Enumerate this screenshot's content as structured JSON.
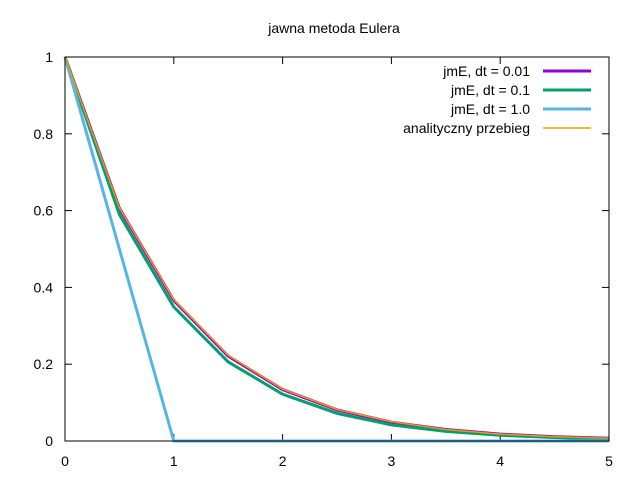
{
  "chart_data": {
    "type": "line",
    "title": "jawna metoda Eulera",
    "xlabel": "",
    "ylabel": "",
    "xlim": [
      0,
      5
    ],
    "ylim": [
      0,
      1
    ],
    "grid": false,
    "legend_position": "top-right",
    "x_ticks": [
      "0",
      "1",
      "2",
      "3",
      "4",
      "5"
    ],
    "y_ticks": [
      "0",
      "0.2",
      "0.4",
      "0.6",
      "0.8",
      "1"
    ],
    "x_tick_values": [
      0,
      1,
      2,
      3,
      4,
      5
    ],
    "y_tick_values": [
      0,
      0.2,
      0.4,
      0.6,
      0.8,
      1
    ],
    "series": [
      {
        "name": "jmE, dt = 0.01",
        "color": "#9400d3",
        "x": [
          0,
          0.5,
          1,
          1.5,
          2,
          2.5,
          3,
          3.5,
          4,
          4.5,
          5
        ],
        "y": [
          1,
          0.606,
          0.366,
          0.221,
          0.134,
          0.081,
          0.049,
          0.03,
          0.018,
          0.011,
          0.007
        ]
      },
      {
        "name": "jmE, dt = 0.1",
        "color": "#009e73",
        "x": [
          0,
          0.5,
          1,
          1.5,
          2,
          2.5,
          3,
          3.5,
          4,
          4.5,
          5
        ],
        "y": [
          1,
          0.59,
          0.349,
          0.206,
          0.122,
          0.072,
          0.042,
          0.025,
          0.015,
          0.009,
          0.005
        ]
      },
      {
        "name": "jmE, dt = 1.0",
        "color": "#56b4e9",
        "x": [
          0,
          1,
          2,
          3,
          4,
          5
        ],
        "y": [
          1,
          0,
          0,
          0,
          0,
          0
        ]
      },
      {
        "name": "analityczny przebieg",
        "color": "#e69f00",
        "x": [
          0,
          0.5,
          1,
          1.5,
          2,
          2.5,
          3,
          3.5,
          4,
          4.5,
          5
        ],
        "y": [
          1,
          0.607,
          0.368,
          0.223,
          0.135,
          0.082,
          0.05,
          0.03,
          0.018,
          0.011,
          0.007
        ]
      }
    ]
  }
}
